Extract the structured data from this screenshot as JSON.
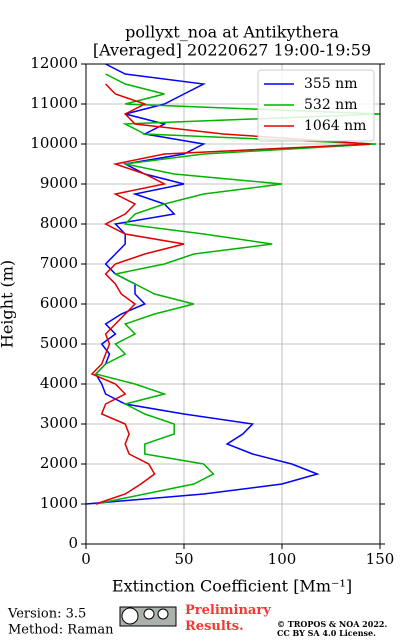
{
  "chart_data": {
    "type": "line",
    "title": [
      "pollyxt_noa at Antikythera",
      "[Averaged] 20220627 19:00-19:59"
    ],
    "x_label": "Extinction Coefficient [Mm⁻¹]",
    "y_label": "Height (m)",
    "heights": [
      1000,
      1250,
      1500,
      1750,
      2000,
      2250,
      2500,
      2750,
      3000,
      3250,
      3500,
      3750,
      4000,
      4250,
      4500,
      4750,
      5000,
      5250,
      5500,
      5750,
      6000,
      6250,
      6500,
      6750,
      7000,
      7250,
      7500,
      7750,
      8000,
      8250,
      8500,
      8750,
      9000,
      9250,
      9500,
      9750,
      10000,
      10250,
      10500,
      10750,
      11000,
      11250,
      11500,
      11750,
      12000
    ],
    "series": [
      {
        "name": "355 nm",
        "color": "#0000ff",
        "values": [
          0,
          60,
          100,
          118,
          105,
          85,
          72,
          80,
          85,
          50,
          20,
          10,
          8,
          5,
          10,
          12,
          8,
          15,
          10,
          18,
          30,
          25,
          25,
          15,
          10,
          15,
          20,
          20,
          15,
          45,
          40,
          25,
          50,
          30,
          20,
          50,
          60,
          30,
          40,
          20,
          40,
          50,
          60,
          20,
          10
        ]
      },
      {
        "name": "532 nm",
        "color": "#00b400",
        "values": [
          5,
          30,
          55,
          65,
          60,
          30,
          30,
          45,
          45,
          30,
          20,
          40,
          25,
          5,
          10,
          20,
          15,
          25,
          20,
          35,
          55,
          35,
          25,
          15,
          40,
          55,
          95,
          60,
          20,
          25,
          40,
          60,
          100,
          45,
          20,
          60,
          148,
          30,
          20,
          150,
          20,
          40,
          20,
          10,
          null
        ]
      },
      {
        "name": "1064 nm",
        "color": "#e00000",
        "values": [
          5,
          20,
          28,
          35,
          32,
          22,
          20,
          22,
          20,
          8,
          10,
          20,
          15,
          3,
          8,
          10,
          12,
          10,
          15,
          20,
          25,
          18,
          15,
          10,
          15,
          30,
          50,
          20,
          10,
          20,
          25,
          15,
          40,
          30,
          15,
          40,
          145,
          70,
          25,
          20,
          30,
          15,
          10,
          null,
          null
        ]
      }
    ],
    "xlim": [
      0,
      150
    ],
    "xticks": [
      0,
      50,
      100,
      150
    ],
    "ylim": [
      0,
      12000
    ],
    "yticks": [
      0,
      1000,
      2000,
      3000,
      4000,
      5000,
      6000,
      7000,
      8000,
      9000,
      10000,
      11000,
      12000
    ],
    "grid": true,
    "legend": "upper right"
  },
  "footer": {
    "version": "Version: 3.5",
    "method": "Method: Raman",
    "status": "Preliminary Results.",
    "copyright": "© TROPOS & NOA 2022.",
    "license": "CC BY SA 4.0 License."
  }
}
